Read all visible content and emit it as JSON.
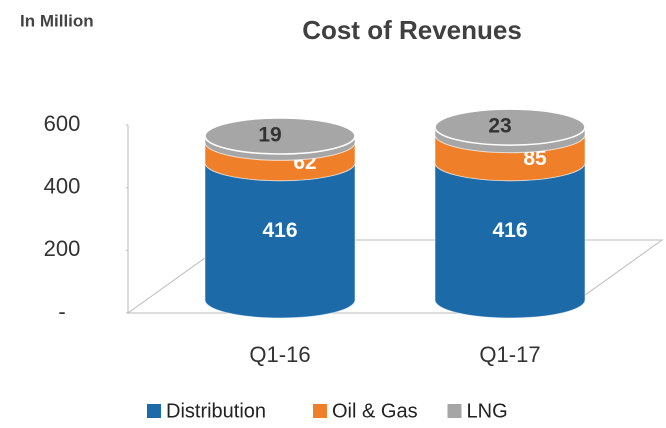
{
  "chart_data": {
    "type": "bar",
    "title": "Cost of Revenues",
    "subtitle": "In Million",
    "categories": [
      "Q1-16",
      "Q1-17"
    ],
    "series": [
      {
        "name": "Distribution",
        "color": "#1c6aa8",
        "values": [
          416,
          416
        ]
      },
      {
        "name": "Oil & Gas",
        "color": "#f07f2a",
        "values": [
          62,
          85
        ]
      },
      {
        "name": "LNG",
        "color": "#a6a6a6",
        "values": [
          19,
          23
        ]
      }
    ],
    "ylim": [
      0,
      600
    ],
    "yticks": [
      {
        "value": 0,
        "label": "-"
      },
      200,
      400,
      600
    ],
    "legend": "bottom"
  }
}
